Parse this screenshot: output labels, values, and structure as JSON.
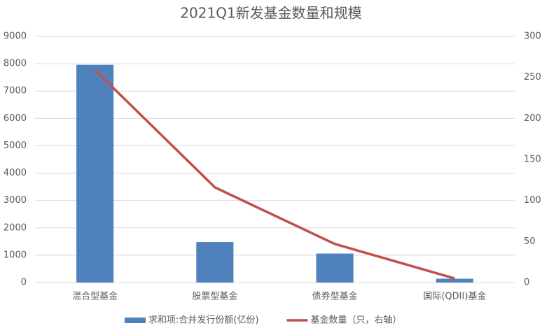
{
  "chart_data": {
    "type": "bar",
    "title": "2021Q1新发基金数量和规模",
    "categories": [
      "混合型基金",
      "股票型基金",
      "债券型基金",
      "国际(QDII)基金"
    ],
    "series": [
      {
        "name": "求和项:合并发行份额(亿份)",
        "type": "bar",
        "color": "#4f81bd",
        "values": [
          7960,
          1480,
          1060,
          140
        ]
      },
      {
        "name": "基金数量（只，右轴）",
        "type": "line",
        "axis": "y2",
        "color": "#c0504d",
        "values": [
          259,
          116,
          47,
          5
        ]
      }
    ],
    "ylim": [
      0,
      9000
    ],
    "yticks": [
      0,
      1000,
      2000,
      3000,
      4000,
      5000,
      6000,
      7000,
      8000,
      9000
    ],
    "y2lim": [
      0,
      300
    ],
    "y2ticks": [
      0,
      50,
      100,
      150,
      200,
      250,
      300
    ],
    "grid": true,
    "legend": "bottom"
  }
}
